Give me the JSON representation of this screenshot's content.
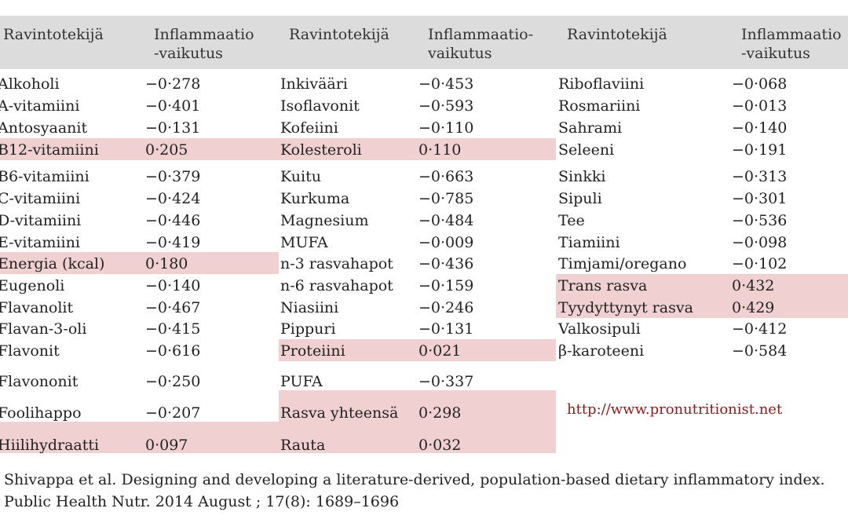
{
  "headers": {
    "food_label": "Ravintotekijä",
    "effect_label_1": "Inflammaatio\n-vaikutus",
    "effect_label_2": "Inflammaatio-\nvaikutus",
    "effect_label_3": "Inflammaatio\n-vaikutus"
  },
  "columns": [
    {
      "rows": [
        {
          "name": "Alkoholi",
          "value": "−0·278",
          "highlight": false
        },
        {
          "name": "A-vitamiini",
          "value": "−0·401",
          "highlight": false
        },
        {
          "name": "Antosyaanit",
          "value": "−0·131",
          "highlight": false
        },
        {
          "name": "B12-vitamiini",
          "value": "0·205",
          "highlight": true
        },
        {
          "name": "B6-vitamiini",
          "value": "−0·379",
          "highlight": false
        },
        {
          "name": "C-vitamiini",
          "value": "−0·424",
          "highlight": false
        },
        {
          "name": "D-vitamiini",
          "value": "−0·446",
          "highlight": false
        },
        {
          "name": "E-vitamiini",
          "value": "−0·419",
          "highlight": false
        },
        {
          "name": "Energia (kcal)",
          "value": "0·180",
          "highlight": true
        },
        {
          "name": "Eugenoli",
          "value": "−0·140",
          "highlight": false
        },
        {
          "name": "Flavanolit",
          "value": "−0·467",
          "highlight": false
        },
        {
          "name": "Flavan-3-oli",
          "value": "−0·415",
          "highlight": false
        },
        {
          "name": "Flavonit",
          "value": "−0·616",
          "highlight": false
        },
        {
          "name": "Flavononit",
          "value": "−0·250",
          "highlight": false
        },
        {
          "name": "Foolihappo",
          "value": "−0·207",
          "highlight": false
        },
        {
          "name": "Hiilihydraatti",
          "value": "0·097",
          "highlight": true
        }
      ]
    },
    {
      "rows": [
        {
          "name": "Inkivääri",
          "value": "−0·453",
          "highlight": false
        },
        {
          "name": "Isoflavonit",
          "value": "−0·593",
          "highlight": false
        },
        {
          "name": "Kofeiini",
          "value": "−0·110",
          "highlight": false
        },
        {
          "name": "Kolesteroli",
          "value": "0·110",
          "highlight": true
        },
        {
          "name": "Kuitu",
          "value": "−0·663",
          "highlight": false
        },
        {
          "name": "Kurkuma",
          "value": "−0·785",
          "highlight": false
        },
        {
          "name": "Magnesium",
          "value": "−0·484",
          "highlight": false
        },
        {
          "name": "MUFA",
          "value": "−0·009",
          "highlight": false
        },
        {
          "name": "n-3 rasvahapot",
          "value": "−0·436",
          "highlight": false
        },
        {
          "name": "n-6 rasvahapot",
          "value": "−0·159",
          "highlight": false
        },
        {
          "name": "Niasiini",
          "value": "−0·246",
          "highlight": false
        },
        {
          "name": "Pippuri",
          "value": "−0·131",
          "highlight": false
        },
        {
          "name": "Proteiini",
          "value": "0·021",
          "highlight": true
        },
        {
          "name": "PUFA",
          "value": "−0·337",
          "highlight": false
        },
        {
          "name": "Rasva yhteensä",
          "value": "0·298",
          "highlight": true
        },
        {
          "name": "Rauta",
          "value": "0·032",
          "highlight": true
        }
      ]
    },
    {
      "rows": [
        {
          "name": "Riboflaviini",
          "value": "−0·068",
          "highlight": false
        },
        {
          "name": "Rosmariini",
          "value": "−0·013",
          "highlight": false
        },
        {
          "name": "Sahrami",
          "value": "−0·140",
          "highlight": false
        },
        {
          "name": "Seleeni",
          "value": "−0·191",
          "highlight": false
        },
        {
          "name": "Sinkki",
          "value": "−0·313",
          "highlight": false
        },
        {
          "name": "Sipuli",
          "value": "−0·301",
          "highlight": false
        },
        {
          "name": "Tee",
          "value": "−0·536",
          "highlight": false
        },
        {
          "name": "Tiamiini",
          "value": "−0·098",
          "highlight": false
        },
        {
          "name": "Timjami/oregano",
          "value": "−0·102",
          "highlight": false
        },
        {
          "name": "Trans rasva",
          "value": "0·432",
          "highlight": true
        },
        {
          "name": "Tyydyttynyt rasva",
          "value": "0·429",
          "highlight": true
        },
        {
          "name": "Valkosipuli",
          "value": "−0·412",
          "highlight": false
        },
        {
          "name": "β-karoteeni",
          "value": "−0·584",
          "highlight": false
        }
      ]
    }
  ],
  "url": "http://www.pronutritionist.net",
  "citation": "Shivappa et al. Designing and developing a literature-derived, population-based dietary inflammatory index.  Public Health Nutr. 2014 August ; 17(8): 1689–1696",
  "colors": {
    "header_bg": "#dcdcdc",
    "highlight_bg": "#f0d0d0",
    "url_color": "#8b1a1a"
  }
}
